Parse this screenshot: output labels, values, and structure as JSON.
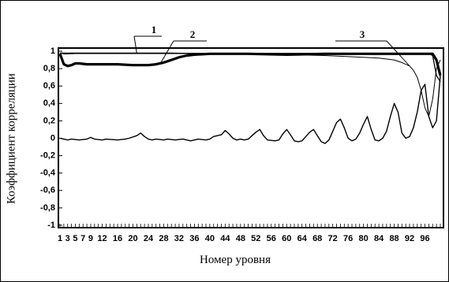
{
  "chart_data": {
    "type": "line",
    "title": "",
    "xlabel": "Номер уровня",
    "ylabel": "Коэффициент корреляции",
    "xlim": [
      1,
      100
    ],
    "ylim": [
      -1,
      1
    ],
    "grid": false,
    "x_tick_labels": [
      "1",
      "3",
      "5",
      "7",
      "9",
      "12",
      "16",
      "20",
      "24",
      "28",
      "32",
      "36",
      "40",
      "44",
      "48",
      "52",
      "56",
      "60",
      "64",
      "68",
      "72",
      "76",
      "80",
      "84",
      "88",
      "92",
      "96"
    ],
    "y_ticks": [
      1,
      0.8,
      0.6,
      0.4,
      0.2,
      0,
      -0.2,
      -0.4,
      -0.6,
      -0.8,
      -1
    ],
    "y_tick_labels": [
      "1",
      "0,8",
      "0,6",
      "0,4",
      "0,2",
      "0",
      "-0,2",
      "-0,4",
      "-0,6",
      "-0,8",
      "-1"
    ],
    "callouts": [
      {
        "label": "1",
        "series": 0,
        "at_x": 21
      },
      {
        "label": "2",
        "series": 1,
        "at_x": 27
      },
      {
        "label": "3",
        "series": 2,
        "at_x": 92
      }
    ],
    "series": [
      {
        "style": "thin-near-one",
        "x": [
          1,
          2,
          3,
          5,
          8,
          15,
          25,
          35,
          50,
          65,
          75,
          80,
          85,
          88,
          90,
          92,
          93,
          94,
          95,
          96,
          97,
          98,
          99,
          100
        ],
        "y": [
          0.98,
          0.97,
          0.97,
          0.975,
          0.975,
          0.975,
          0.975,
          0.975,
          0.975,
          0.975,
          0.975,
          0.975,
          0.975,
          0.975,
          0.975,
          0.975,
          0.975,
          0.975,
          0.975,
          0.975,
          0.975,
          0.95,
          0.72,
          0.65
        ]
      },
      {
        "style": "thick",
        "x": [
          1,
          2,
          3,
          4,
          5,
          6,
          8,
          12,
          16,
          20,
          24,
          26,
          28,
          30,
          32,
          34,
          36,
          40,
          50,
          60,
          70,
          80,
          85,
          88,
          90,
          92,
          93,
          94,
          95,
          96,
          97,
          98,
          99,
          100
        ],
        "y": [
          0.97,
          0.85,
          0.83,
          0.84,
          0.86,
          0.86,
          0.85,
          0.85,
          0.85,
          0.84,
          0.84,
          0.85,
          0.87,
          0.9,
          0.93,
          0.95,
          0.96,
          0.97,
          0.97,
          0.96,
          0.97,
          0.97,
          0.97,
          0.97,
          0.97,
          0.97,
          0.97,
          0.97,
          0.97,
          0.97,
          0.97,
          0.97,
          0.9,
          0.72
        ]
      },
      {
        "style": "thin-declining",
        "x": [
          1,
          5,
          10,
          20,
          30,
          40,
          50,
          60,
          70,
          75,
          80,
          84,
          88,
          90,
          92,
          93,
          94,
          95,
          96,
          97,
          98,
          99,
          100
        ],
        "y": [
          0.98,
          0.98,
          0.98,
          0.98,
          0.98,
          0.97,
          0.97,
          0.96,
          0.95,
          0.94,
          0.93,
          0.92,
          0.9,
          0.87,
          0.83,
          0.78,
          0.7,
          0.55,
          0.35,
          0.25,
          0.45,
          0.8,
          0.9
        ]
      },
      {
        "style": "near-zero",
        "x": [
          1,
          2,
          3,
          4,
          6,
          8,
          9,
          10,
          12,
          13,
          16,
          18,
          19,
          21,
          22,
          23,
          24,
          25,
          26,
          28,
          29,
          31,
          33,
          35,
          37,
          39,
          40,
          41,
          43,
          44,
          45,
          46,
          47,
          48,
          49,
          50,
          51,
          52,
          53,
          54,
          55,
          57,
          58,
          59,
          60,
          61,
          62,
          63,
          64,
          65,
          66,
          67,
          68,
          69,
          70,
          71,
          72,
          73,
          74,
          75,
          76,
          77,
          78,
          79,
          80,
          81,
          82,
          83,
          84,
          85,
          86,
          87,
          88,
          89,
          90,
          91,
          92,
          93,
          94,
          95,
          96,
          97,
          98,
          99,
          100
        ],
        "y": [
          0.0,
          -0.01,
          -0.02,
          -0.01,
          -0.02,
          -0.01,
          0.01,
          -0.01,
          -0.02,
          -0.01,
          -0.02,
          -0.01,
          0.0,
          0.03,
          0.06,
          0.02,
          -0.01,
          -0.02,
          -0.01,
          -0.02,
          -0.01,
          -0.02,
          -0.01,
          -0.03,
          -0.01,
          -0.02,
          -0.01,
          0.02,
          0.04,
          0.09,
          0.05,
          0.0,
          -0.02,
          -0.01,
          -0.02,
          -0.01,
          0.03,
          0.07,
          0.1,
          0.03,
          -0.02,
          -0.03,
          -0.02,
          0.05,
          0.1,
          0.04,
          -0.03,
          -0.04,
          -0.03,
          0.02,
          0.07,
          0.1,
          0.03,
          -0.04,
          -0.06,
          -0.02,
          0.08,
          0.18,
          0.22,
          0.12,
          0.0,
          -0.03,
          -0.01,
          0.06,
          0.16,
          0.25,
          0.1,
          -0.02,
          -0.03,
          0.0,
          0.08,
          0.25,
          0.4,
          0.3,
          0.06,
          0.0,
          0.02,
          0.12,
          0.3,
          0.55,
          0.62,
          0.25,
          0.12,
          0.2,
          0.72
        ]
      }
    ]
  }
}
